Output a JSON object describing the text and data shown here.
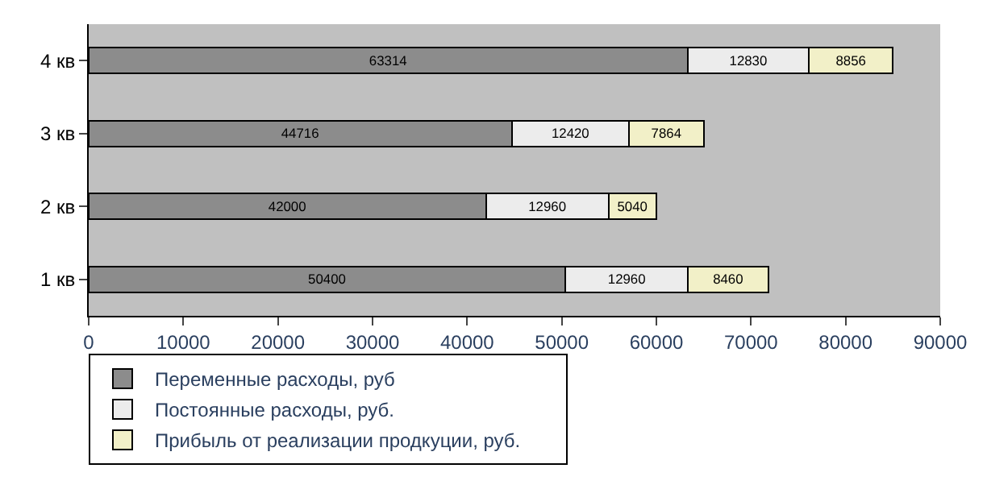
{
  "chart_data": {
    "type": "bar",
    "orientation": "horizontal",
    "stacked": true,
    "data_labels": true,
    "grid": false,
    "legend": "bottom",
    "categories": [
      "4 кв",
      "3 кв",
      "2 кв",
      "1 кв"
    ],
    "xlim": [
      0,
      90000
    ],
    "xticks": [
      0,
      10000,
      20000,
      30000,
      40000,
      50000,
      60000,
      70000,
      80000,
      90000
    ],
    "series": [
      {
        "name": "Переменные расходы, руб",
        "color": "#8c8c8c",
        "values": [
          63314,
          44716,
          42000,
          50400
        ]
      },
      {
        "name": "Постоянные расходы, руб.",
        "color": "#ececec",
        "values": [
          12830,
          12420,
          12960,
          12960
        ]
      },
      {
        "name": "Прибыль от реализации продкуции, руб.",
        "color": "#f2f0c8",
        "values": [
          8856,
          7864,
          5040,
          8460
        ]
      }
    ]
  }
}
